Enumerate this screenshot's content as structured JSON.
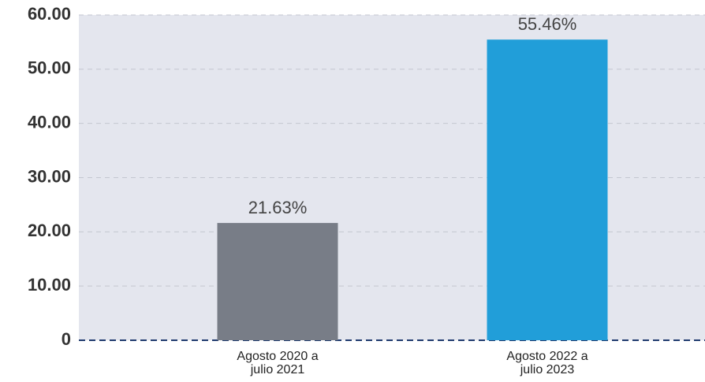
{
  "chart_data": {
    "type": "bar",
    "categories": [
      "Agosto 2020 a julio 2021",
      "Agosto 2022 a julio 2023"
    ],
    "values": [
      21.63,
      55.46
    ],
    "value_labels": [
      "21.63%",
      "55.46%"
    ],
    "colors": [
      "#787d87",
      "#219ed9"
    ],
    "ylim": [
      0,
      60
    ],
    "yticks": [
      0,
      {
        "value": 10,
        "label": "10.00"
      },
      {
        "value": 20,
        "label": "20.00"
      },
      {
        "value": 30,
        "label": "30.00"
      },
      {
        "value": 40,
        "label": "40.00"
      },
      {
        "value": 50,
        "label": "50.00"
      },
      {
        "value": 60,
        "label": "60.00"
      }
    ],
    "grid": true
  }
}
